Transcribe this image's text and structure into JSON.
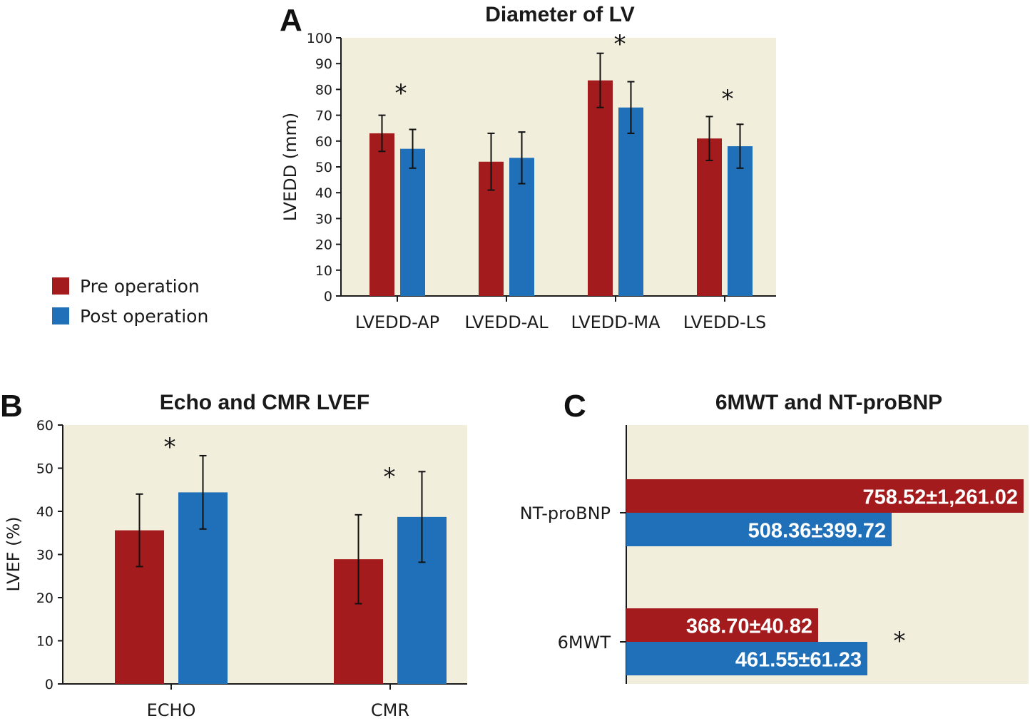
{
  "colors": {
    "pre": "#a31b1d",
    "post": "#1f70b8",
    "plot_bg": "#f2eedc"
  },
  "legend": {
    "items": [
      {
        "label": "Pre operation",
        "color": "#a31b1d"
      },
      {
        "label": "Post operation",
        "color": "#1f70b8"
      }
    ]
  },
  "chart_data": [
    {
      "panel": "A",
      "type": "bar",
      "title": "Diameter of LV",
      "ylabel": "LVEDD (mm)",
      "xlabel": "",
      "ylim": [
        0,
        100
      ],
      "yticks": [
        "0",
        "10",
        "20",
        "30",
        "40",
        "50",
        "60",
        "70",
        "80",
        "90",
        "100"
      ],
      "categories": [
        "LVEDD-AP",
        "LVEDD-AL",
        "LVEDD-MA",
        "LVEDD-LS"
      ],
      "series": [
        {
          "name": "Pre operation",
          "values": [
            63,
            52,
            83.5,
            61
          ],
          "errors": [
            7,
            11,
            10.5,
            8.5
          ]
        },
        {
          "name": "Post operation",
          "values": [
            57,
            53.5,
            73,
            58
          ],
          "errors": [
            7.5,
            10,
            10,
            8.5
          ]
        }
      ],
      "annotations": [
        "*",
        "*",
        "*"
      ]
    },
    {
      "panel": "B",
      "type": "bar",
      "title": "Echo and CMR LVEF",
      "ylabel": "LVEF (%)",
      "xlabel": "",
      "ylim": [
        0,
        60
      ],
      "yticks": [
        "0",
        "10",
        "20",
        "30",
        "40",
        "50",
        "60"
      ],
      "categories": [
        "ECHO",
        "CMR"
      ],
      "series": [
        {
          "name": "Pre operation",
          "values": [
            35.6,
            28.9
          ],
          "errors": [
            8.4,
            10.3
          ]
        },
        {
          "name": "Post operation",
          "values": [
            44.4,
            38.7
          ],
          "errors": [
            8.5,
            10.5
          ]
        }
      ],
      "annotations": [
        "*",
        "*"
      ]
    },
    {
      "panel": "C",
      "type": "bar",
      "orientation": "horizontal",
      "title": "6MWT and NT-proBNP",
      "categories": [
        "NT-proBNP",
        "6MWT"
      ],
      "series": [
        {
          "name": "Pre operation",
          "labels": [
            "758.52±1,261.02",
            "368.70±40.82"
          ]
        },
        {
          "name": "Post operation",
          "labels": [
            "508.36±399.72",
            "461.55±61.23"
          ]
        }
      ],
      "annotations": [
        "*"
      ]
    }
  ]
}
